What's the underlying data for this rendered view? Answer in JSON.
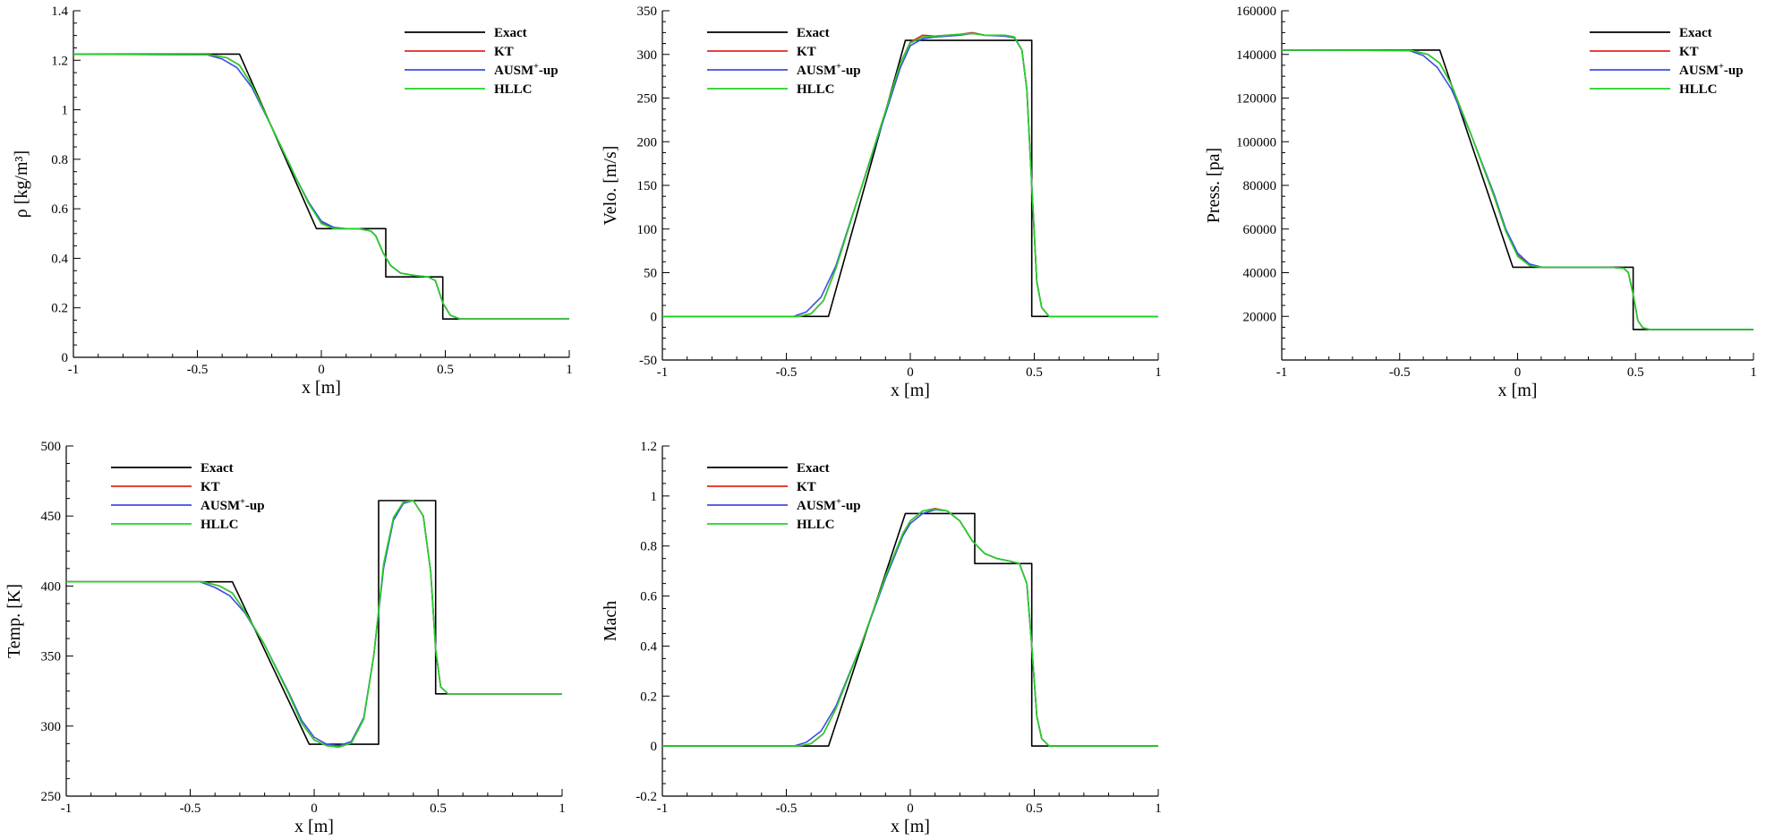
{
  "colors": {
    "Exact": "#000000",
    "KT": "#e0281e",
    "AUSM+-up": "#3b4ee6",
    "HLLC": "#22d322"
  },
  "chart_data": [
    {
      "id": "density",
      "type": "line",
      "xlabel": "x [m]",
      "ylabel": "ρ [kg/m³]",
      "xlim": [
        -1,
        1
      ],
      "ylim": [
        0,
        1.4
      ],
      "xticks": [
        -1,
        -0.5,
        0,
        0.5,
        1
      ],
      "xtick_labels": [
        "-1",
        "-0.5",
        "0",
        "0.5",
        "1"
      ],
      "yticks": [
        0,
        0.2,
        0.4,
        0.6,
        0.8,
        1,
        1.2,
        1.4
      ],
      "ytick_labels": [
        "0",
        "0.2",
        "0.4",
        "0.6",
        "0.8",
        "1",
        "1.2",
        "1.4"
      ],
      "legend": "top-right",
      "series": [
        {
          "name": "Exact",
          "x": [
            -1,
            -0.33,
            -0.02,
            0.26,
            0.26,
            0.49,
            0.49,
            1
          ],
          "y": [
            1.225,
            1.225,
            0.52,
            0.52,
            0.325,
            0.325,
            0.155,
            0.155
          ]
        },
        {
          "name": "KT",
          "x": [
            -1,
            -0.45,
            -0.38,
            -0.33,
            -0.28,
            -0.2,
            -0.1,
            -0.05,
            0,
            0.05,
            0.1,
            0.15,
            0.2,
            0.22,
            0.25,
            0.28,
            0.32,
            0.38,
            0.43,
            0.46,
            0.49,
            0.52,
            0.56,
            1
          ],
          "y": [
            1.225,
            1.222,
            1.21,
            1.18,
            1.1,
            0.93,
            0.72,
            0.62,
            0.545,
            0.52,
            0.52,
            0.52,
            0.51,
            0.49,
            0.42,
            0.37,
            0.34,
            0.33,
            0.325,
            0.31,
            0.22,
            0.17,
            0.155,
            0.155
          ]
        },
        {
          "name": "AUSM+-up",
          "x": [
            -1,
            -0.46,
            -0.4,
            -0.34,
            -0.28,
            -0.2,
            -0.1,
            -0.05,
            0,
            0.05,
            0.1,
            0.15,
            0.2,
            0.22,
            0.25,
            0.28,
            0.32,
            0.38,
            0.43,
            0.46,
            0.49,
            0.52,
            0.56,
            1
          ],
          "y": [
            1.225,
            1.222,
            1.205,
            1.17,
            1.09,
            0.93,
            0.72,
            0.625,
            0.55,
            0.525,
            0.52,
            0.52,
            0.51,
            0.49,
            0.42,
            0.37,
            0.34,
            0.33,
            0.325,
            0.31,
            0.22,
            0.17,
            0.155,
            0.155
          ]
        },
        {
          "name": "HLLC",
          "x": [
            -1,
            -0.45,
            -0.38,
            -0.33,
            -0.28,
            -0.2,
            -0.1,
            -0.05,
            0,
            0.05,
            0.1,
            0.15,
            0.2,
            0.22,
            0.25,
            0.28,
            0.32,
            0.38,
            0.43,
            0.46,
            0.49,
            0.52,
            0.56,
            1
          ],
          "y": [
            1.225,
            1.222,
            1.21,
            1.18,
            1.1,
            0.93,
            0.72,
            0.62,
            0.54,
            0.52,
            0.52,
            0.52,
            0.51,
            0.49,
            0.42,
            0.37,
            0.34,
            0.33,
            0.325,
            0.31,
            0.22,
            0.17,
            0.155,
            0.155
          ]
        }
      ]
    },
    {
      "id": "velocity",
      "type": "line",
      "xlabel": "x [m]",
      "ylabel": "Velo. [m/s]",
      "xlim": [
        -1,
        1
      ],
      "ylim": [
        -50,
        350
      ],
      "xticks": [
        -1,
        -0.5,
        0,
        0.5,
        1
      ],
      "xtick_labels": [
        "-1",
        "-0.5",
        "0",
        "0.5",
        "1"
      ],
      "yticks": [
        -50,
        0,
        50,
        100,
        150,
        200,
        250,
        300,
        350
      ],
      "ytick_labels": [
        "-50",
        "0",
        "50",
        "100",
        "150",
        "200",
        "250",
        "300",
        "350"
      ],
      "legend": "top-right",
      "series": [
        {
          "name": "Exact",
          "x": [
            -1,
            -0.33,
            -0.02,
            0.49,
            0.49,
            1
          ],
          "y": [
            0,
            0,
            316,
            316,
            0,
            0
          ]
        },
        {
          "name": "KT",
          "x": [
            -1,
            -0.45,
            -0.4,
            -0.35,
            -0.3,
            -0.2,
            -0.1,
            -0.04,
            0,
            0.05,
            0.1,
            0.2,
            0.25,
            0.3,
            0.38,
            0.42,
            0.45,
            0.47,
            0.49,
            0.51,
            0.53,
            0.56,
            1
          ],
          "y": [
            0,
            0,
            3,
            18,
            55,
            145,
            235,
            290,
            314,
            322,
            321,
            323,
            325,
            322,
            322,
            320,
            305,
            260,
            150,
            40,
            10,
            0,
            0
          ]
        },
        {
          "name": "AUSM+-up",
          "x": [
            -1,
            -0.47,
            -0.42,
            -0.36,
            -0.3,
            -0.2,
            -0.1,
            -0.04,
            0,
            0.05,
            0.1,
            0.2,
            0.25,
            0.3,
            0.38,
            0.42,
            0.45,
            0.47,
            0.49,
            0.51,
            0.53,
            0.56,
            1
          ],
          "y": [
            0,
            0,
            5,
            22,
            58,
            145,
            232,
            285,
            310,
            318,
            320,
            322,
            324,
            322,
            321,
            319,
            305,
            260,
            150,
            40,
            10,
            0,
            0
          ]
        },
        {
          "name": "HLLC",
          "x": [
            -1,
            -0.45,
            -0.4,
            -0.35,
            -0.3,
            -0.2,
            -0.1,
            -0.04,
            0,
            0.05,
            0.1,
            0.2,
            0.25,
            0.3,
            0.38,
            0.42,
            0.45,
            0.47,
            0.49,
            0.51,
            0.53,
            0.56,
            1
          ],
          "y": [
            0,
            0,
            3,
            18,
            55,
            145,
            235,
            290,
            313,
            320,
            321,
            323,
            324,
            322,
            322,
            320,
            305,
            260,
            150,
            40,
            10,
            0,
            0
          ]
        }
      ]
    },
    {
      "id": "pressure",
      "type": "line",
      "xlabel": "x [m]",
      "ylabel": "Press. [pa]",
      "xlim": [
        -1,
        1
      ],
      "ylim": [
        0,
        160000
      ],
      "xticks": [
        -1,
        -0.5,
        0,
        0.5,
        1
      ],
      "xtick_labels": [
        "-1",
        "-0.5",
        "0",
        "0.5",
        "1"
      ],
      "yticks": [
        20000,
        40000,
        60000,
        80000,
        100000,
        120000,
        140000,
        160000
      ],
      "ytick_labels": [
        "20000",
        "40000",
        "60000",
        "80000",
        "100000",
        "120000",
        "140000",
        "160000"
      ],
      "legend": "top-right",
      "series": [
        {
          "name": "Exact",
          "x": [
            -1,
            -0.33,
            -0.02,
            0.49,
            0.49,
            1
          ],
          "y": [
            142000,
            142000,
            42500,
            42500,
            14000,
            14000
          ]
        },
        {
          "name": "KT",
          "x": [
            -1,
            -0.45,
            -0.38,
            -0.33,
            -0.28,
            -0.2,
            -0.1,
            -0.05,
            0,
            0.05,
            0.1,
            0.2,
            0.3,
            0.4,
            0.45,
            0.47,
            0.49,
            0.51,
            0.53,
            0.56,
            1
          ],
          "y": [
            142000,
            141800,
            140000,
            136000,
            126000,
            104000,
            75000,
            59000,
            48000,
            43500,
            42500,
            42500,
            42500,
            42400,
            42000,
            40000,
            30000,
            18000,
            14800,
            14000,
            14000
          ]
        },
        {
          "name": "AUSM+-up",
          "x": [
            -1,
            -0.46,
            -0.4,
            -0.34,
            -0.28,
            -0.2,
            -0.1,
            -0.05,
            0,
            0.05,
            0.1,
            0.2,
            0.3,
            0.4,
            0.45,
            0.47,
            0.49,
            0.51,
            0.53,
            0.56,
            1
          ],
          "y": [
            142000,
            141800,
            139500,
            134000,
            124000,
            104000,
            76000,
            60000,
            49000,
            44000,
            42600,
            42500,
            42500,
            42400,
            42000,
            40000,
            30000,
            18000,
            14800,
            14000,
            14000
          ]
        },
        {
          "name": "HLLC",
          "x": [
            -1,
            -0.45,
            -0.38,
            -0.33,
            -0.28,
            -0.2,
            -0.1,
            -0.05,
            0,
            0.05,
            0.1,
            0.2,
            0.3,
            0.4,
            0.45,
            0.47,
            0.49,
            0.51,
            0.53,
            0.56,
            1
          ],
          "y": [
            142000,
            141800,
            140000,
            136000,
            126000,
            104000,
            75000,
            59000,
            47500,
            43300,
            42500,
            42500,
            42500,
            42400,
            42000,
            40000,
            30000,
            18000,
            14800,
            14000,
            14000
          ]
        }
      ]
    },
    {
      "id": "temperature",
      "type": "line",
      "xlabel": "x [m]",
      "ylabel": "Temp. [K]",
      "xlim": [
        -1,
        1
      ],
      "ylim": [
        250,
        500
      ],
      "xticks": [
        -1,
        -0.5,
        0,
        0.5,
        1
      ],
      "xtick_labels": [
        "-1",
        "-0.5",
        "0",
        "0.5",
        "1"
      ],
      "yticks": [
        250,
        300,
        350,
        400,
        450,
        500
      ],
      "ytick_labels": [
        "250",
        "300",
        "350",
        "400",
        "450",
        "500"
      ],
      "legend": "top-left",
      "series": [
        {
          "name": "Exact",
          "x": [
            -1,
            -0.33,
            -0.02,
            0.26,
            0.26,
            0.49,
            0.49,
            1
          ],
          "y": [
            403,
            403,
            287,
            287,
            461,
            461,
            323,
            323
          ]
        },
        {
          "name": "KT",
          "x": [
            -1,
            -0.45,
            -0.38,
            -0.33,
            -0.28,
            -0.2,
            -0.1,
            -0.05,
            0,
            0.05,
            0.1,
            0.15,
            0.2,
            0.24,
            0.28,
            0.32,
            0.36,
            0.4,
            0.44,
            0.47,
            0.49,
            0.51,
            0.54,
            1
          ],
          "y": [
            403,
            403,
            400,
            395,
            382,
            358,
            322,
            302,
            290,
            286,
            285,
            288,
            305,
            350,
            415,
            448,
            460,
            461,
            450,
            410,
            355,
            328,
            323,
            323
          ]
        },
        {
          "name": "AUSM+-up",
          "x": [
            -1,
            -0.46,
            -0.4,
            -0.34,
            -0.28,
            -0.2,
            -0.1,
            -0.05,
            0,
            0.05,
            0.1,
            0.15,
            0.2,
            0.24,
            0.28,
            0.32,
            0.36,
            0.4,
            0.44,
            0.47,
            0.49,
            0.51,
            0.54,
            1
          ],
          "y": [
            403,
            403,
            399,
            393,
            381,
            358,
            323,
            304,
            292,
            287,
            286,
            289,
            306,
            350,
            413,
            447,
            459,
            461,
            450,
            410,
            355,
            328,
            323,
            323
          ]
        },
        {
          "name": "HLLC",
          "x": [
            -1,
            -0.45,
            -0.38,
            -0.33,
            -0.28,
            -0.2,
            -0.1,
            -0.05,
            0,
            0.05,
            0.1,
            0.15,
            0.2,
            0.24,
            0.28,
            0.32,
            0.36,
            0.4,
            0.44,
            0.47,
            0.49,
            0.51,
            0.54,
            1
          ],
          "y": [
            403,
            403,
            400,
            395,
            382,
            358,
            322,
            302,
            290,
            286,
            285,
            288,
            305,
            350,
            416,
            449,
            460,
            461,
            450,
            410,
            355,
            328,
            323,
            323
          ]
        }
      ]
    },
    {
      "id": "mach",
      "type": "line",
      "xlabel": "x [m]",
      "ylabel": "Mach",
      "xlim": [
        -1,
        1
      ],
      "ylim": [
        -0.2,
        1.2
      ],
      "xticks": [
        -1,
        -0.5,
        0,
        0.5,
        1
      ],
      "xtick_labels": [
        "-1",
        "-0.5",
        "0",
        "0.5",
        "1"
      ],
      "yticks": [
        -0.2,
        0,
        0.2,
        0.4,
        0.6,
        0.8,
        1,
        1.2
      ],
      "ytick_labels": [
        "-0.2",
        "0",
        "0.2",
        "0.4",
        "0.6",
        "0.8",
        "1",
        "1.2"
      ],
      "legend": "top-left",
      "series": [
        {
          "name": "Exact",
          "x": [
            -1,
            -0.33,
            -0.02,
            0.26,
            0.26,
            0.49,
            0.49,
            1
          ],
          "y": [
            0,
            0,
            0.93,
            0.93,
            0.73,
            0.73,
            0,
            0
          ]
        },
        {
          "name": "KT",
          "x": [
            -1,
            -0.45,
            -0.4,
            -0.35,
            -0.3,
            -0.2,
            -0.1,
            -0.03,
            0,
            0.05,
            0.1,
            0.15,
            0.2,
            0.25,
            0.3,
            0.35,
            0.4,
            0.44,
            0.47,
            0.49,
            0.51,
            0.53,
            0.56,
            1
          ],
          "y": [
            0,
            0,
            0.01,
            0.05,
            0.15,
            0.4,
            0.68,
            0.85,
            0.9,
            0.94,
            0.95,
            0.94,
            0.9,
            0.82,
            0.77,
            0.75,
            0.74,
            0.73,
            0.65,
            0.4,
            0.12,
            0.03,
            0,
            0
          ]
        },
        {
          "name": "AUSM+-up",
          "x": [
            -1,
            -0.47,
            -0.42,
            -0.36,
            -0.3,
            -0.2,
            -0.1,
            -0.03,
            0,
            0.05,
            0.1,
            0.15,
            0.2,
            0.25,
            0.3,
            0.35,
            0.4,
            0.44,
            0.47,
            0.49,
            0.51,
            0.53,
            0.56,
            1
          ],
          "y": [
            0,
            0,
            0.015,
            0.06,
            0.16,
            0.4,
            0.67,
            0.84,
            0.89,
            0.93,
            0.945,
            0.94,
            0.9,
            0.82,
            0.77,
            0.75,
            0.74,
            0.73,
            0.65,
            0.4,
            0.12,
            0.03,
            0,
            0
          ]
        },
        {
          "name": "HLLC",
          "x": [
            -1,
            -0.45,
            -0.4,
            -0.35,
            -0.3,
            -0.2,
            -0.1,
            -0.03,
            0,
            0.05,
            0.1,
            0.15,
            0.2,
            0.25,
            0.3,
            0.35,
            0.4,
            0.44,
            0.47,
            0.49,
            0.51,
            0.53,
            0.56,
            1
          ],
          "y": [
            0,
            0,
            0.01,
            0.05,
            0.15,
            0.4,
            0.68,
            0.85,
            0.9,
            0.94,
            0.948,
            0.94,
            0.9,
            0.82,
            0.77,
            0.75,
            0.74,
            0.73,
            0.65,
            0.4,
            0.12,
            0.03,
            0,
            0
          ]
        }
      ]
    }
  ],
  "legend_entries": [
    {
      "key": "Exact",
      "label": "Exact",
      "sup": ""
    },
    {
      "key": "KT",
      "label": "KT",
      "sup": ""
    },
    {
      "key": "AUSM+-up",
      "label": "AUSM",
      "sup": "+",
      "suffix": "-up"
    },
    {
      "key": "HLLC",
      "label": "HLLC",
      "sup": ""
    }
  ]
}
